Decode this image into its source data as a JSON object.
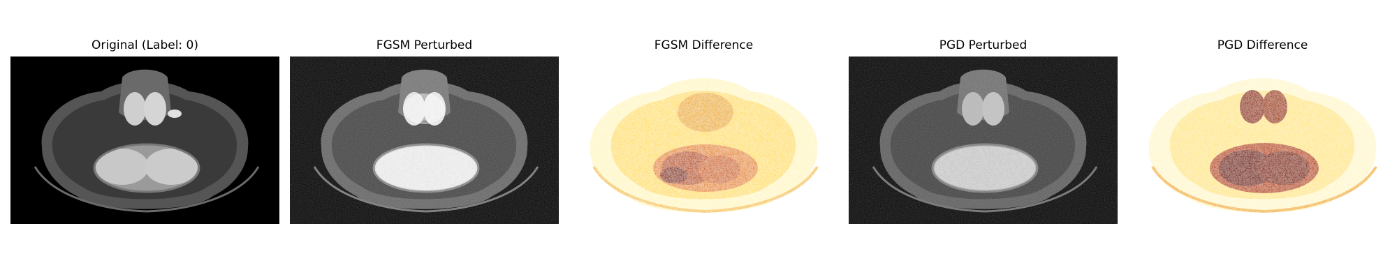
{
  "figure": {
    "panels": [
      {
        "id": "original",
        "title": "Original (Label: 0)",
        "image": "brain-mri-axial-grayscale"
      },
      {
        "id": "fgsm-perturbed",
        "title": "FGSM Perturbed",
        "image": "brain-mri-axial-grayscale-noisy"
      },
      {
        "id": "fgsm-difference",
        "title": "FGSM Difference",
        "image": "difference-heatmap-hot-colormap"
      },
      {
        "id": "pgd-perturbed",
        "title": "PGD Perturbed",
        "image": "brain-mri-axial-grayscale-noisy"
      },
      {
        "id": "pgd-difference",
        "title": "PGD Difference",
        "image": "difference-heatmap-hot-colormap"
      }
    ],
    "colors": {
      "background": "#000000",
      "heat_dark": "#5a0a00",
      "heat_mid": "#d65a00",
      "heat_light": "#ffe680"
    }
  }
}
